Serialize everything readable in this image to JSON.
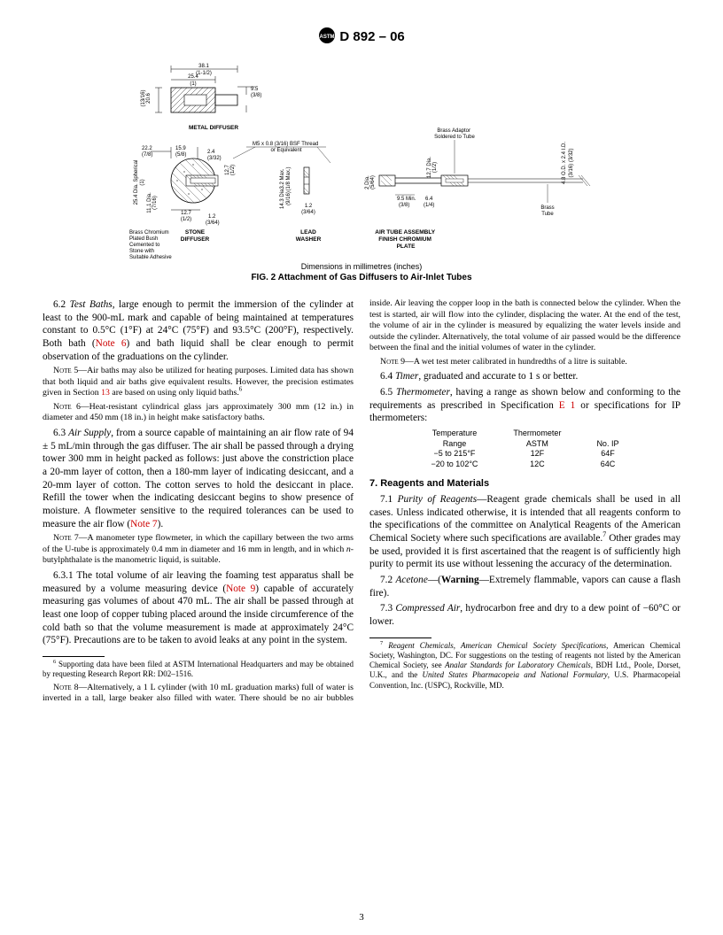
{
  "header": {
    "designation": "D 892 – 06"
  },
  "figure": {
    "dim_caption": "Dimensions in millimetres (inches)",
    "caption": "FIG. 2 Attachment of Gas Diffusers to Air-Inlet Tubes",
    "labels": {
      "metal_diffuser": "METAL DIFFUSER",
      "brass_bush": "Brass Chromium Plated Bush Cemented to Stone with Suitable Adhesive",
      "stone_diffuser": "STONE DIFFUSER",
      "lead_washer": "LEAD WASHER",
      "air_tube": "AIR TUBE ASSEMBLY FINISH CHROMIUM PLATE",
      "brass_adaptor": "Brass Adaptor Soldered to Tube",
      "brass_tube": "Brass Tube",
      "thread": "M5 x 0.8 (3/16) BSF Thread or Equivalent"
    },
    "dims": {
      "d38_1": "38.1",
      "d38_1in": "(1-1/2)",
      "d25_4a": "25.4",
      "d25_4ain": "(1)",
      "d9_5": "9.5",
      "d9_5in": "(3/8)",
      "d20_6": "20.6",
      "d20_6in": "(13/16)",
      "d22_2": "22.2",
      "d22_2in": "(7/8)",
      "d15_9": "15.9",
      "d15_9in": "(5/8)",
      "d2_4": "2.4",
      "d2_4in": "(3/32)",
      "d25_4_spherical": "25.4 Dia. Spherical",
      "d25_4b_in": "(1)",
      "d12_7a": "12.7",
      "d12_7ain": "(1/2)",
      "d11_1": "11.1 Dia.",
      "d11_1in": "(7/16)",
      "d1_2": "1.2",
      "d1_2in": "(3/64)",
      "d3_2": "3.2 Max.",
      "d3_2in": "(1/8 Max.)",
      "d14_3": "14.3 Dia.",
      "d14_3in": "(9/16)",
      "d1_2b": "1.2",
      "d1_2bin": "(3/64)",
      "d2dia": "2 Dia.",
      "d2diain": "(5/64)",
      "d12_7b": "12.7 Dia.",
      "d12_7bin": "(1/2)",
      "d9_5min": "9.5 Min.",
      "d9_5min_in": "(3/8)",
      "d6_4": "6.4",
      "d6_4in": "(1/4)",
      "d4_8": "4.8 O.D. x 2.4 I.D.",
      "d4_8in": "(3/16)        (3/32)"
    }
  },
  "body": {
    "p6_2": "6.2 <span class='ital'>Test Baths</span>, large enough to permit the immersion of the cylinder at least to the 900-mL mark and capable of being maintained at temperatures constant to 0.5°C (1°F) at 24°C (75°F) and 93.5°C (200°F), respectively. Both bath (<span class='red'>Note 6</span>) and bath liquid shall be clear enough to permit observation of the graduations on the cylinder.",
    "n5": "N<span class='sc'>ote</span> 5—Air baths may also be utilized for heating purposes. Limited data has shown that both liquid and air baths give equivalent results. However, the precision estimates given in Section <span class='red'>13</span> are based on using only liquid baths.<sup>6</sup>",
    "n6": "N<span class='sc'>ote</span> 6—Heat-resistant cylindrical glass jars approximately 300 mm (12 in.) in diameter and 450 mm (18 in.) in height make satisfactory baths.",
    "p6_3": "6.3 <span class='ital'>Air Supply</span>, from a source capable of maintaining an air flow rate of 94 ± 5 mL/min through the gas diffuser. The air shall be passed through a drying tower 300 mm in height packed as follows: just above the constriction place a 20-mm layer of cotton, then a 180-mm layer of indicating desiccant, and a 20-mm layer of cotton. The cotton serves to hold the desiccant in place. Refill the tower when the indicating desiccant begins to show presence of moisture. A flowmeter sensitive to the required tolerances can be used to measure the air flow (<span class='red'>Note 7</span>).",
    "n7": "N<span class='sc'>ote</span> 7—A manometer type flowmeter, in which the capillary between the two arms of the U-tube is approximately 0.4 mm in diameter and 16 mm in length, and in which <span class='ital'>n</span>-butylphthalate is the manometric liquid, is suitable.",
    "p6_3_1": "6.3.1 The total volume of air leaving the foaming test apparatus shall be measured by a volume measuring device (<span class='red'>Note 9</span>) capable of accurately measuring gas volumes of about 470 mL. The air shall be passed through at least one loop of copper tubing placed around the inside circumference of the cold bath so that the volume measurement is made at approximately 24°C (75°F). Precautions are to be taken to avoid leaks at any point in the system.",
    "fn6": "<sup>6</sup> Supporting data have been filed at ASTM International Headquarters and may be obtained by requesting Research Report RR: D02–1516.",
    "n8": "N<span class='sc'>ote</span> 8—Alternatively, a 1 L cylinder (with 10 mL graduation marks) full of water is inverted in a tall, large beaker also filled with water. There should be no air bubbles inside. Air leaving the copper loop in the bath is connected below the cylinder. When the test is started, air will flow into the cylinder, displacing the water. At the end of the test, the volume of air in the cylinder is measured by equalizing the water levels inside and outside the cylinder. Alternatively, the total volume of air passed would be the difference between the final and the initial volumes of water in the cylinder.",
    "n9": "N<span class='sc'>ote</span> 9—A wet test meter calibrated in hundredths of a litre is suitable.",
    "p6_4": "6.4 <span class='ital'>Timer</span>, graduated and accurate to 1 s or better.",
    "p6_5": "6.5 <span class='ital'>Thermometer</span>, having a range as shown below and conforming to the requirements as prescribed in Specification <span class='red'>E 1</span> or specifications for IP thermometers:",
    "therm": {
      "h1": "Temperature Range",
      "h2": "Thermometer ASTM",
      "h3": "No. IP",
      "r1c1": "−5 to 215°F",
      "r1c2": "12F",
      "r1c3": "64F",
      "r2c1": "−20 to 102°C",
      "r2c2": "12C",
      "r2c3": "64C"
    },
    "s7": "7. Reagents and Materials",
    "p7_1": "7.1 <span class='ital'>Purity of Reagents</span>—Reagent grade chemicals shall be used in all cases. Unless indicated otherwise, it is intended that all reagents conform to the specifications of the committee on Analytical Reagents of the American Chemical Society where such specifications are available.<sup>7</sup> Other grades may be used, provided it is first ascertained that the reagent is of sufficiently high purity to permit its use without lessening the accuracy of the determination.",
    "p7_2": "7.2 <span class='ital'>Acetone</span>—(<span class='bold'>Warning</span>—Extremely flammable, vapors can cause a flash fire).",
    "p7_3": "7.3 <span class='ital'>Compressed Air</span>, hydrocarbon free and dry to a dew point of −60°C or lower.",
    "fn7": "<sup>7</sup> <span class='ital'>Reagent Chemicals, American Chemical Society Specifications</span>, American Chemical Society, Washington, DC. For suggestions on the testing of reagents not listed by the American Chemical Society, see <span class='ital'>Analar Standards for Laboratory Chemicals</span>, BDH Ltd., Poole, Dorset, U.K., and the <span class='ital'>United States Pharmacopeia and National Formulary</span>, U.S. Pharmacopeial Convention, Inc. (USPC), Rockville, MD."
  },
  "page_num": "3"
}
